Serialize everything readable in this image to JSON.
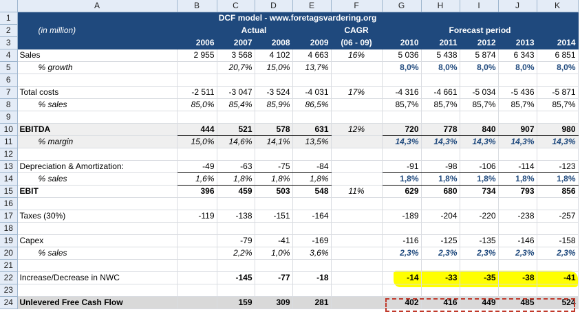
{
  "columns": [
    "A",
    "B",
    "C",
    "D",
    "E",
    "F",
    "G",
    "H",
    "I",
    "J",
    "K"
  ],
  "row_numbers": [
    "1",
    "2",
    "3",
    "4",
    "5",
    "6",
    "7",
    "8",
    "9",
    "10",
    "11",
    "12",
    "13",
    "14",
    "15",
    "16",
    "17",
    "18",
    "19",
    "20",
    "21",
    "22",
    "23",
    "24"
  ],
  "title": "DCF model - www.foretagsvardering.org",
  "units": "(in million)",
  "actual_label": "Actual",
  "cagr_label": "CAGR",
  "cagr_range": "(06 - 09)",
  "forecast_label": "Forecast period",
  "years": [
    "2006",
    "2007",
    "2008",
    "2009",
    "",
    "2010",
    "2011",
    "2012",
    "2013",
    "2014"
  ],
  "rows": {
    "sales": {
      "label": "Sales",
      "vals": [
        "2 955",
        "3 568",
        "4 102",
        "4 663",
        "16%",
        "5 036",
        "5 438",
        "5 874",
        "6 343",
        "6 851"
      ]
    },
    "growth": {
      "label": "% growth",
      "vals": [
        "",
        "20,7%",
        "15,0%",
        "13,7%",
        "",
        "8,0%",
        "8,0%",
        "8,0%",
        "8,0%",
        "8,0%"
      ]
    },
    "costs": {
      "label": "Total costs",
      "vals": [
        "-2 511",
        "-3 047",
        "-3 524",
        "-4 031",
        "17%",
        "-4 316",
        "-4 661",
        "-5 034",
        "-5 436",
        "-5 871"
      ]
    },
    "costs_pct": {
      "label": "% sales",
      "vals": [
        "85,0%",
        "85,4%",
        "85,9%",
        "86,5%",
        "",
        "85,7%",
        "85,7%",
        "85,7%",
        "85,7%",
        "85,7%"
      ]
    },
    "ebitda": {
      "label": "EBITDA",
      "vals": [
        "444",
        "521",
        "578",
        "631",
        "12%",
        "720",
        "778",
        "840",
        "907",
        "980"
      ]
    },
    "margin": {
      "label": "% margin",
      "vals": [
        "15,0%",
        "14,6%",
        "14,1%",
        "13,5%",
        "",
        "14,3%",
        "14,3%",
        "14,3%",
        "14,3%",
        "14,3%"
      ]
    },
    "da": {
      "label": "Depreciation & Amortization:",
      "vals": [
        "-49",
        "-63",
        "-75",
        "-84",
        "",
        "-91",
        "-98",
        "-106",
        "-114",
        "-123"
      ]
    },
    "da_pct": {
      "label": "% sales",
      "vals": [
        "1,6%",
        "1,8%",
        "1,8%",
        "1,8%",
        "",
        "1,8%",
        "1,8%",
        "1,8%",
        "1,8%",
        "1,8%"
      ]
    },
    "ebit": {
      "label": "EBIT",
      "vals": [
        "396",
        "459",
        "503",
        "548",
        "11%",
        "629",
        "680",
        "734",
        "793",
        "856"
      ]
    },
    "taxes": {
      "label": "Taxes (30%)",
      "vals": [
        "-119",
        "-138",
        "-151",
        "-164",
        "",
        "-189",
        "-204",
        "-220",
        "-238",
        "-257"
      ]
    },
    "capex": {
      "label": "Capex",
      "vals": [
        "",
        "-79",
        "-41",
        "-169",
        "",
        "-116",
        "-125",
        "-135",
        "-146",
        "-158"
      ]
    },
    "capex_pct": {
      "label": "% sales",
      "vals": [
        "",
        "2,2%",
        "1,0%",
        "3,6%",
        "",
        "2,3%",
        "2,3%",
        "2,3%",
        "2,3%",
        "2,3%"
      ]
    },
    "nwc": {
      "label": "Increase/Decrease in NWC",
      "vals": [
        "",
        "-145",
        "-77",
        "-18",
        "",
        "-14",
        "-33",
        "-35",
        "-38",
        "-41"
      ]
    },
    "ufcf": {
      "label": "Unlevered Free Cash Flow",
      "vals": [
        "",
        "159",
        "309",
        "281",
        "",
        "402",
        "416",
        "449",
        "485",
        "524"
      ]
    }
  },
  "colors": {
    "header_navy": "#1f497d",
    "forecast_blue": "#1f497d",
    "highlight": "#ffff00",
    "dash": "#c0392b"
  }
}
